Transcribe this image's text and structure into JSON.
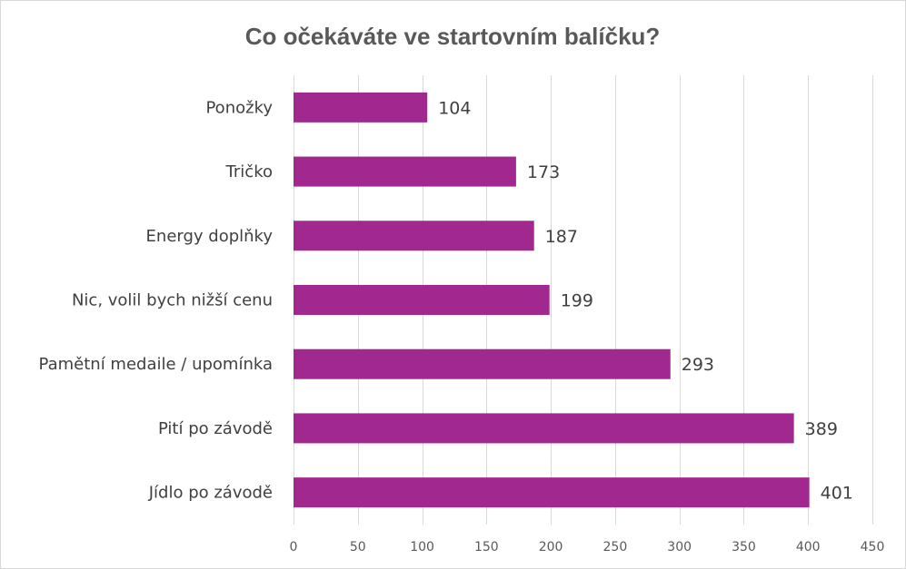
{
  "chart_data": {
    "type": "bar",
    "orientation": "horizontal",
    "title": "Co očekáváte ve startovním balíčku?",
    "xlabel": "",
    "ylabel": "",
    "categories": [
      "Ponožky",
      "Tričko",
      "Energy doplňky",
      "Nic, volil bych nižší cenu",
      "Pamětní medaile / upomínka",
      "Pití po závodě",
      "Jídlo po závodě"
    ],
    "values": [
      104,
      173,
      187,
      199,
      293,
      389,
      401
    ],
    "data_labels": [
      "104",
      "173",
      "187",
      "199",
      "293",
      "389",
      "401"
    ],
    "xlim": [
      0,
      450
    ],
    "x_ticks": [
      0,
      50,
      100,
      150,
      200,
      250,
      300,
      350,
      400,
      450
    ],
    "x_tick_labels": [
      "0",
      "50",
      "100",
      "150",
      "200",
      "250",
      "300",
      "350",
      "400",
      "450"
    ],
    "grid": "vertical",
    "legend": "none",
    "bar_color": "#a0288f"
  }
}
